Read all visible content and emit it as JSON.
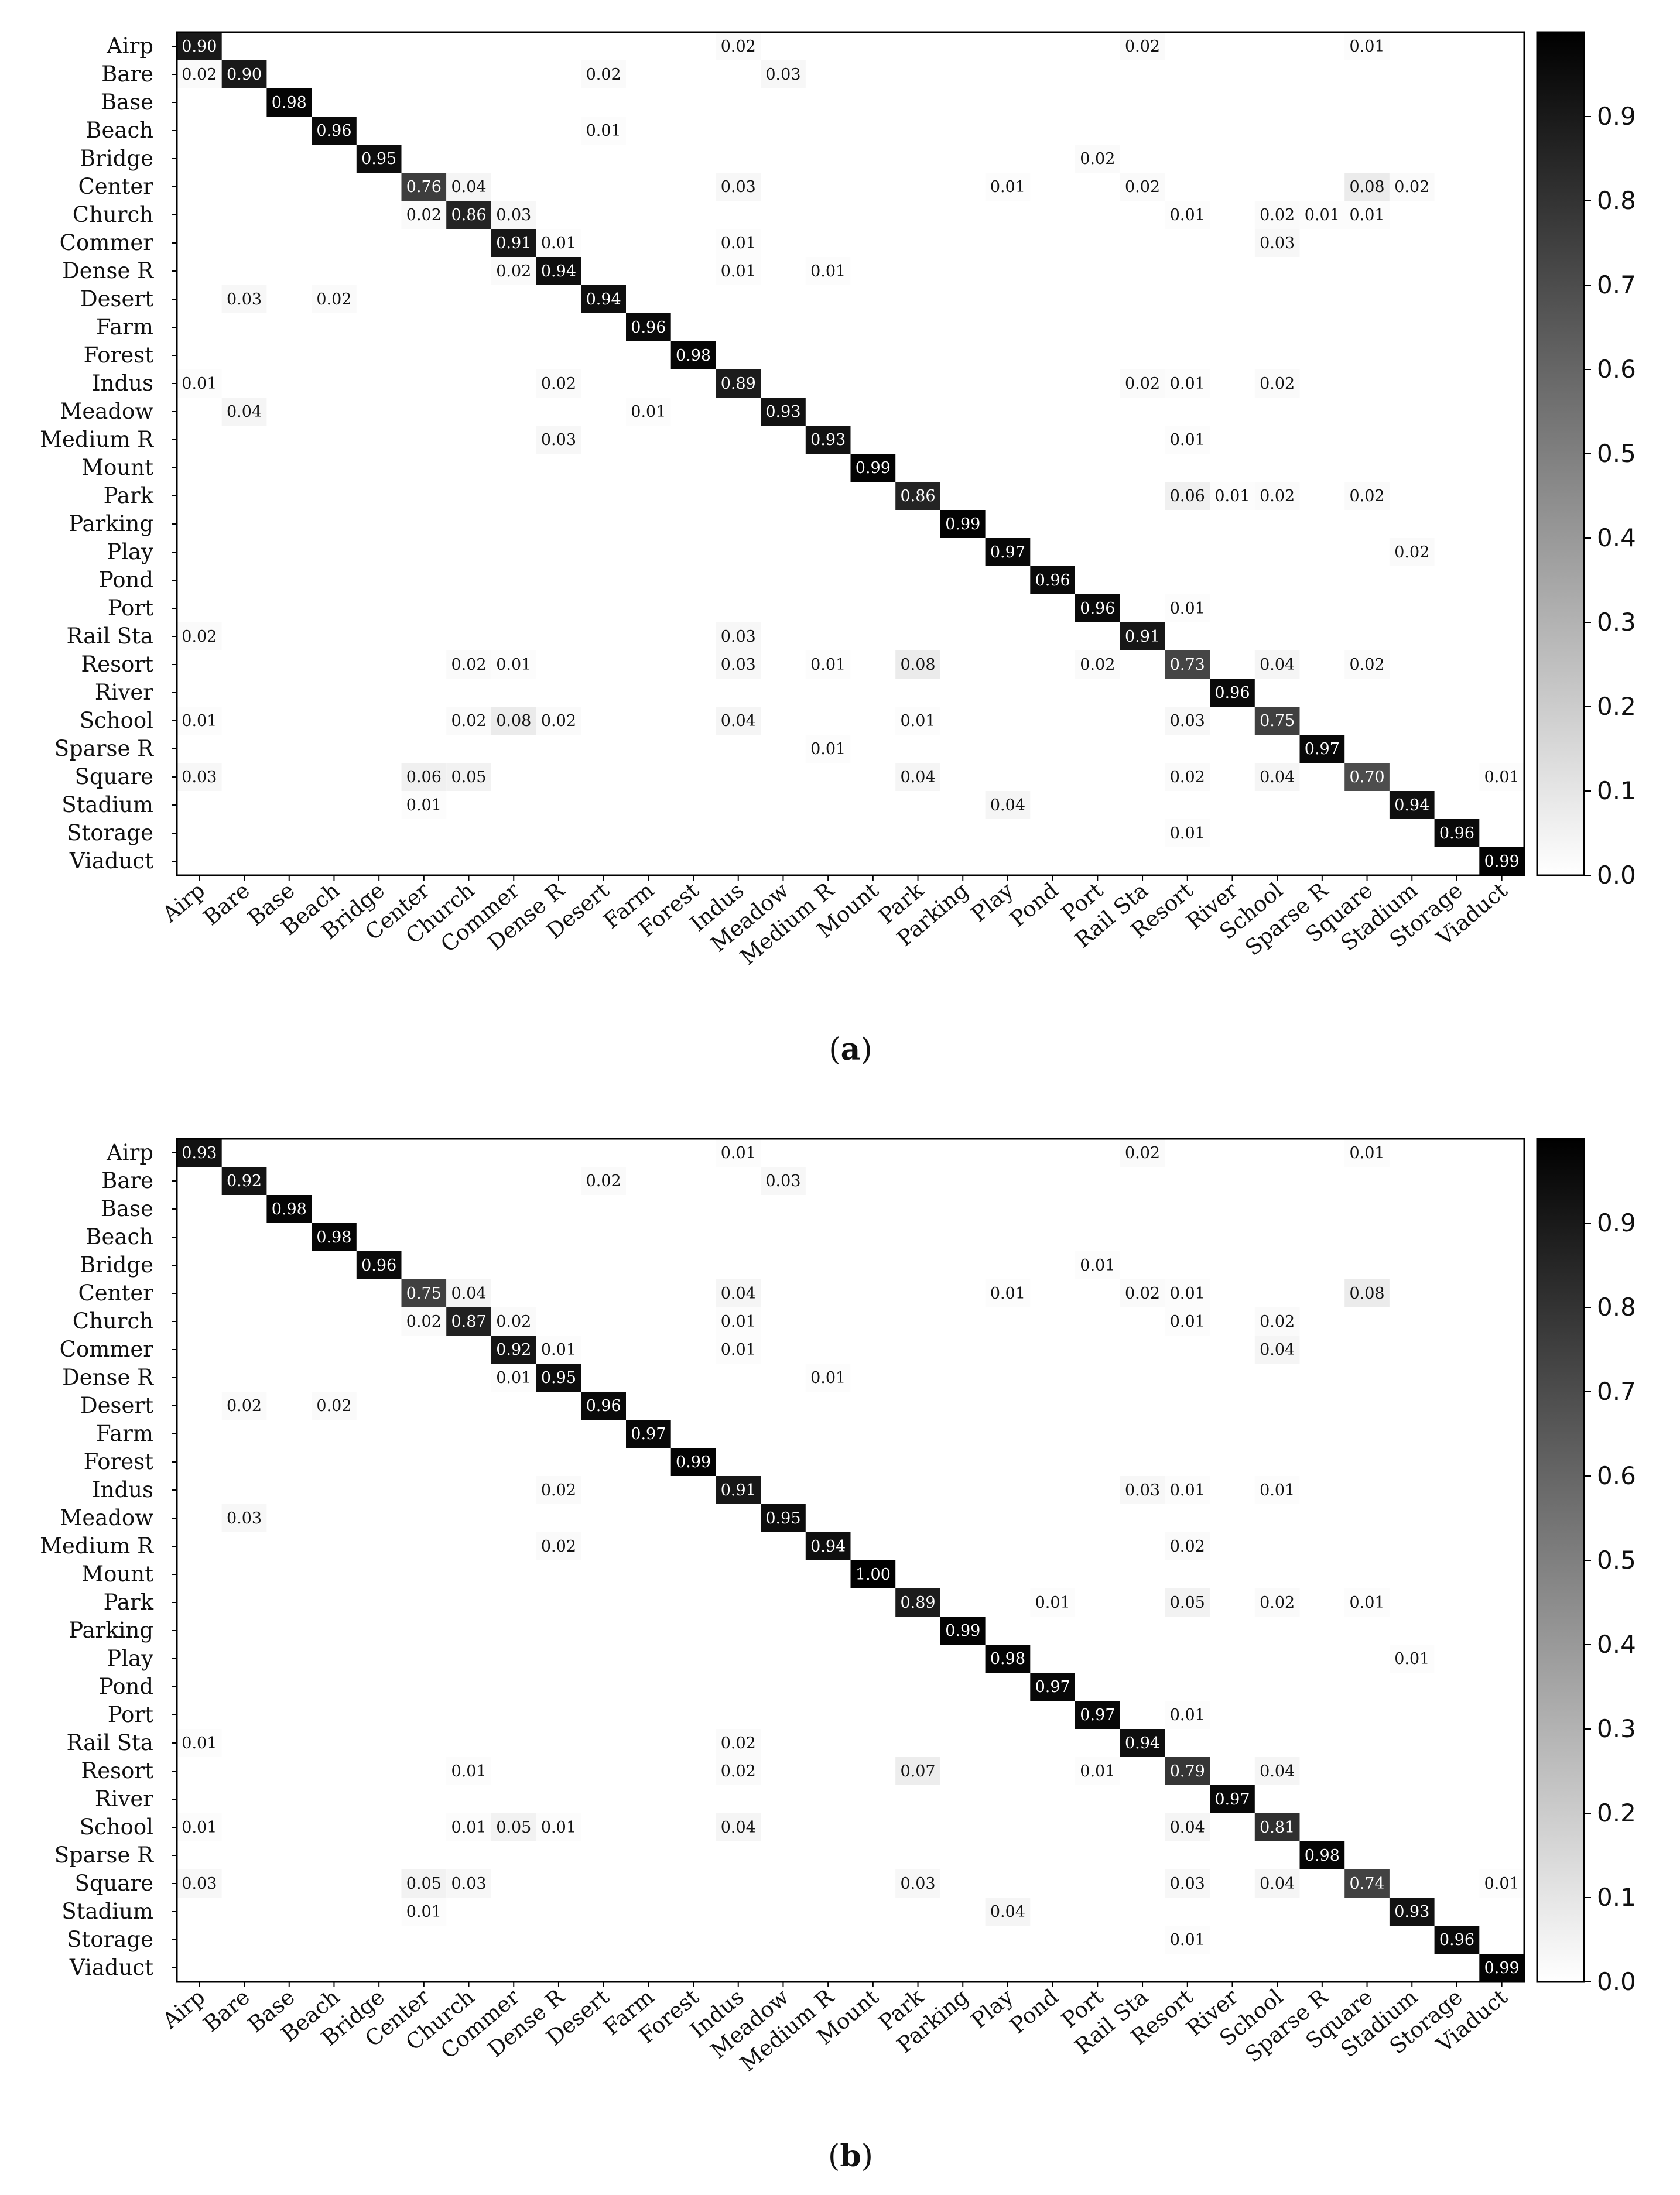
{
  "chart_data": [
    {
      "type": "heatmap",
      "caption": "(a)",
      "caption_parts": [
        "(",
        "a",
        ")"
      ],
      "labels": [
        "Airp",
        "Bare",
        "Base",
        "Beach",
        "Bridge",
        "Center",
        "Church",
        "Commer",
        "Dense R",
        "Desert",
        "Farm",
        "Forest",
        "Indus",
        "Meadow",
        "Medium R",
        "Mount",
        "Park",
        "Parking",
        "Play",
        "Pond",
        "Port",
        "Rail Sta",
        "Resort",
        "River",
        "School",
        "Sparse R",
        "Square",
        "Stadium",
        "Storage",
        "Viaduct"
      ],
      "colorbar": {
        "min": 0.0,
        "max": 1.0,
        "colormap": "Greys",
        "ticks": [
          "0.0",
          "0.1",
          "0.2",
          "0.3",
          "0.4",
          "0.5",
          "0.6",
          "0.7",
          "0.8",
          "0.9"
        ]
      },
      "cells": [
        {
          "r": 0,
          "c": 0,
          "v": "0.90"
        },
        {
          "r": 0,
          "c": 12,
          "v": "0.02"
        },
        {
          "r": 0,
          "c": 21,
          "v": "0.02"
        },
        {
          "r": 0,
          "c": 26,
          "v": "0.01"
        },
        {
          "r": 1,
          "c": 0,
          "v": "0.02"
        },
        {
          "r": 1,
          "c": 1,
          "v": "0.90"
        },
        {
          "r": 1,
          "c": 9,
          "v": "0.02"
        },
        {
          "r": 1,
          "c": 13,
          "v": "0.03"
        },
        {
          "r": 2,
          "c": 2,
          "v": "0.98"
        },
        {
          "r": 3,
          "c": 3,
          "v": "0.96"
        },
        {
          "r": 3,
          "c": 9,
          "v": "0.01"
        },
        {
          "r": 4,
          "c": 4,
          "v": "0.95"
        },
        {
          "r": 4,
          "c": 20,
          "v": "0.02"
        },
        {
          "r": 5,
          "c": 5,
          "v": "0.76"
        },
        {
          "r": 5,
          "c": 6,
          "v": "0.04"
        },
        {
          "r": 5,
          "c": 12,
          "v": "0.03"
        },
        {
          "r": 5,
          "c": 18,
          "v": "0.01"
        },
        {
          "r": 5,
          "c": 21,
          "v": "0.02"
        },
        {
          "r": 5,
          "c": 26,
          "v": "0.08"
        },
        {
          "r": 5,
          "c": 27,
          "v": "0.02"
        },
        {
          "r": 6,
          "c": 5,
          "v": "0.02"
        },
        {
          "r": 6,
          "c": 6,
          "v": "0.86"
        },
        {
          "r": 6,
          "c": 7,
          "v": "0.03"
        },
        {
          "r": 6,
          "c": 22,
          "v": "0.01"
        },
        {
          "r": 6,
          "c": 24,
          "v": "0.02"
        },
        {
          "r": 6,
          "c": 25,
          "v": "0.01"
        },
        {
          "r": 6,
          "c": 26,
          "v": "0.01"
        },
        {
          "r": 7,
          "c": 7,
          "v": "0.91"
        },
        {
          "r": 7,
          "c": 8,
          "v": "0.01"
        },
        {
          "r": 7,
          "c": 12,
          "v": "0.01"
        },
        {
          "r": 7,
          "c": 24,
          "v": "0.03"
        },
        {
          "r": 8,
          "c": 7,
          "v": "0.02"
        },
        {
          "r": 8,
          "c": 8,
          "v": "0.94"
        },
        {
          "r": 8,
          "c": 12,
          "v": "0.01"
        },
        {
          "r": 8,
          "c": 14,
          "v": "0.01"
        },
        {
          "r": 9,
          "c": 1,
          "v": "0.03"
        },
        {
          "r": 9,
          "c": 3,
          "v": "0.02"
        },
        {
          "r": 9,
          "c": 9,
          "v": "0.94"
        },
        {
          "r": 10,
          "c": 10,
          "v": "0.96"
        },
        {
          "r": 11,
          "c": 11,
          "v": "0.98"
        },
        {
          "r": 12,
          "c": 0,
          "v": "0.01"
        },
        {
          "r": 12,
          "c": 8,
          "v": "0.02"
        },
        {
          "r": 12,
          "c": 12,
          "v": "0.89"
        },
        {
          "r": 12,
          "c": 21,
          "v": "0.02"
        },
        {
          "r": 12,
          "c": 22,
          "v": "0.01"
        },
        {
          "r": 12,
          "c": 24,
          "v": "0.02"
        },
        {
          "r": 13,
          "c": 1,
          "v": "0.04"
        },
        {
          "r": 13,
          "c": 10,
          "v": "0.01"
        },
        {
          "r": 13,
          "c": 13,
          "v": "0.93"
        },
        {
          "r": 14,
          "c": 8,
          "v": "0.03"
        },
        {
          "r": 14,
          "c": 14,
          "v": "0.93"
        },
        {
          "r": 14,
          "c": 22,
          "v": "0.01"
        },
        {
          "r": 15,
          "c": 15,
          "v": "0.99"
        },
        {
          "r": 16,
          "c": 16,
          "v": "0.86"
        },
        {
          "r": 16,
          "c": 22,
          "v": "0.06"
        },
        {
          "r": 16,
          "c": 23,
          "v": "0.01"
        },
        {
          "r": 16,
          "c": 24,
          "v": "0.02"
        },
        {
          "r": 16,
          "c": 26,
          "v": "0.02"
        },
        {
          "r": 17,
          "c": 17,
          "v": "0.99"
        },
        {
          "r": 18,
          "c": 18,
          "v": "0.97"
        },
        {
          "r": 18,
          "c": 27,
          "v": "0.02"
        },
        {
          "r": 19,
          "c": 19,
          "v": "0.96"
        },
        {
          "r": 20,
          "c": 20,
          "v": "0.96"
        },
        {
          "r": 20,
          "c": 22,
          "v": "0.01"
        },
        {
          "r": 21,
          "c": 0,
          "v": "0.02"
        },
        {
          "r": 21,
          "c": 12,
          "v": "0.03"
        },
        {
          "r": 21,
          "c": 21,
          "v": "0.91"
        },
        {
          "r": 22,
          "c": 6,
          "v": "0.02"
        },
        {
          "r": 22,
          "c": 7,
          "v": "0.01"
        },
        {
          "r": 22,
          "c": 12,
          "v": "0.03"
        },
        {
          "r": 22,
          "c": 14,
          "v": "0.01"
        },
        {
          "r": 22,
          "c": 16,
          "v": "0.08"
        },
        {
          "r": 22,
          "c": 20,
          "v": "0.02"
        },
        {
          "r": 22,
          "c": 22,
          "v": "0.73"
        },
        {
          "r": 22,
          "c": 24,
          "v": "0.04"
        },
        {
          "r": 22,
          "c": 26,
          "v": "0.02"
        },
        {
          "r": 23,
          "c": 23,
          "v": "0.96"
        },
        {
          "r": 24,
          "c": 0,
          "v": "0.01"
        },
        {
          "r": 24,
          "c": 6,
          "v": "0.02"
        },
        {
          "r": 24,
          "c": 7,
          "v": "0.08"
        },
        {
          "r": 24,
          "c": 8,
          "v": "0.02"
        },
        {
          "r": 24,
          "c": 12,
          "v": "0.04"
        },
        {
          "r": 24,
          "c": 16,
          "v": "0.01"
        },
        {
          "r": 24,
          "c": 22,
          "v": "0.03"
        },
        {
          "r": 24,
          "c": 24,
          "v": "0.75"
        },
        {
          "r": 25,
          "c": 14,
          "v": "0.01"
        },
        {
          "r": 25,
          "c": 25,
          "v": "0.97"
        },
        {
          "r": 26,
          "c": 0,
          "v": "0.03"
        },
        {
          "r": 26,
          "c": 5,
          "v": "0.06"
        },
        {
          "r": 26,
          "c": 6,
          "v": "0.05"
        },
        {
          "r": 26,
          "c": 16,
          "v": "0.04"
        },
        {
          "r": 26,
          "c": 22,
          "v": "0.02"
        },
        {
          "r": 26,
          "c": 24,
          "v": "0.04"
        },
        {
          "r": 26,
          "c": 26,
          "v": "0.70"
        },
        {
          "r": 26,
          "c": 29,
          "v": "0.01"
        },
        {
          "r": 27,
          "c": 5,
          "v": "0.01"
        },
        {
          "r": 27,
          "c": 18,
          "v": "0.04"
        },
        {
          "r": 27,
          "c": 27,
          "v": "0.94"
        },
        {
          "r": 28,
          "c": 22,
          "v": "0.01"
        },
        {
          "r": 28,
          "c": 28,
          "v": "0.96"
        },
        {
          "r": 29,
          "c": 29,
          "v": "0.99"
        }
      ]
    },
    {
      "type": "heatmap",
      "caption": "(b)",
      "caption_parts": [
        "(",
        "b",
        ")"
      ],
      "labels": [
        "Airp",
        "Bare",
        "Base",
        "Beach",
        "Bridge",
        "Center",
        "Church",
        "Commer",
        "Dense R",
        "Desert",
        "Farm",
        "Forest",
        "Indus",
        "Meadow",
        "Medium R",
        "Mount",
        "Park",
        "Parking",
        "Play",
        "Pond",
        "Port",
        "Rail Sta",
        "Resort",
        "River",
        "School",
        "Sparse R",
        "Square",
        "Stadium",
        "Storage",
        "Viaduct"
      ],
      "colorbar": {
        "min": 0.0,
        "max": 1.0,
        "colormap": "Greys",
        "ticks": [
          "0.0",
          "0.1",
          "0.2",
          "0.3",
          "0.4",
          "0.5",
          "0.6",
          "0.7",
          "0.8",
          "0.9"
        ]
      },
      "cells": [
        {
          "r": 0,
          "c": 0,
          "v": "0.93"
        },
        {
          "r": 0,
          "c": 12,
          "v": "0.01"
        },
        {
          "r": 0,
          "c": 21,
          "v": "0.02"
        },
        {
          "r": 0,
          "c": 26,
          "v": "0.01"
        },
        {
          "r": 1,
          "c": 1,
          "v": "0.92"
        },
        {
          "r": 1,
          "c": 9,
          "v": "0.02"
        },
        {
          "r": 1,
          "c": 13,
          "v": "0.03"
        },
        {
          "r": 2,
          "c": 2,
          "v": "0.98"
        },
        {
          "r": 3,
          "c": 3,
          "v": "0.98"
        },
        {
          "r": 4,
          "c": 4,
          "v": "0.96"
        },
        {
          "r": 4,
          "c": 20,
          "v": "0.01"
        },
        {
          "r": 5,
          "c": 5,
          "v": "0.75"
        },
        {
          "r": 5,
          "c": 6,
          "v": "0.04"
        },
        {
          "r": 5,
          "c": 12,
          "v": "0.04"
        },
        {
          "r": 5,
          "c": 18,
          "v": "0.01"
        },
        {
          "r": 5,
          "c": 21,
          "v": "0.02"
        },
        {
          "r": 5,
          "c": 22,
          "v": "0.01"
        },
        {
          "r": 5,
          "c": 26,
          "v": "0.08"
        },
        {
          "r": 6,
          "c": 5,
          "v": "0.02"
        },
        {
          "r": 6,
          "c": 6,
          "v": "0.87"
        },
        {
          "r": 6,
          "c": 7,
          "v": "0.02"
        },
        {
          "r": 6,
          "c": 12,
          "v": "0.01"
        },
        {
          "r": 6,
          "c": 22,
          "v": "0.01"
        },
        {
          "r": 6,
          "c": 24,
          "v": "0.02"
        },
        {
          "r": 7,
          "c": 7,
          "v": "0.92"
        },
        {
          "r": 7,
          "c": 8,
          "v": "0.01"
        },
        {
          "r": 7,
          "c": 12,
          "v": "0.01"
        },
        {
          "r": 7,
          "c": 24,
          "v": "0.04"
        },
        {
          "r": 8,
          "c": 7,
          "v": "0.01"
        },
        {
          "r": 8,
          "c": 8,
          "v": "0.95"
        },
        {
          "r": 8,
          "c": 14,
          "v": "0.01"
        },
        {
          "r": 9,
          "c": 1,
          "v": "0.02"
        },
        {
          "r": 9,
          "c": 3,
          "v": "0.02"
        },
        {
          "r": 9,
          "c": 9,
          "v": "0.96"
        },
        {
          "r": 10,
          "c": 10,
          "v": "0.97"
        },
        {
          "r": 11,
          "c": 11,
          "v": "0.99"
        },
        {
          "r": 12,
          "c": 8,
          "v": "0.02"
        },
        {
          "r": 12,
          "c": 12,
          "v": "0.91"
        },
        {
          "r": 12,
          "c": 21,
          "v": "0.03"
        },
        {
          "r": 12,
          "c": 22,
          "v": "0.01"
        },
        {
          "r": 12,
          "c": 24,
          "v": "0.01"
        },
        {
          "r": 13,
          "c": 1,
          "v": "0.03"
        },
        {
          "r": 13,
          "c": 13,
          "v": "0.95"
        },
        {
          "r": 14,
          "c": 8,
          "v": "0.02"
        },
        {
          "r": 14,
          "c": 14,
          "v": "0.94"
        },
        {
          "r": 14,
          "c": 22,
          "v": "0.02"
        },
        {
          "r": 15,
          "c": 15,
          "v": "1.00"
        },
        {
          "r": 16,
          "c": 16,
          "v": "0.89"
        },
        {
          "r": 16,
          "c": 19,
          "v": "0.01"
        },
        {
          "r": 16,
          "c": 22,
          "v": "0.05"
        },
        {
          "r": 16,
          "c": 24,
          "v": "0.02"
        },
        {
          "r": 16,
          "c": 26,
          "v": "0.01"
        },
        {
          "r": 17,
          "c": 17,
          "v": "0.99"
        },
        {
          "r": 18,
          "c": 18,
          "v": "0.98"
        },
        {
          "r": 18,
          "c": 27,
          "v": "0.01"
        },
        {
          "r": 19,
          "c": 19,
          "v": "0.97"
        },
        {
          "r": 20,
          "c": 20,
          "v": "0.97"
        },
        {
          "r": 20,
          "c": 22,
          "v": "0.01"
        },
        {
          "r": 21,
          "c": 0,
          "v": "0.01"
        },
        {
          "r": 21,
          "c": 12,
          "v": "0.02"
        },
        {
          "r": 21,
          "c": 21,
          "v": "0.94"
        },
        {
          "r": 22,
          "c": 6,
          "v": "0.01"
        },
        {
          "r": 22,
          "c": 12,
          "v": "0.02"
        },
        {
          "r": 22,
          "c": 16,
          "v": "0.07"
        },
        {
          "r": 22,
          "c": 20,
          "v": "0.01"
        },
        {
          "r": 22,
          "c": 22,
          "v": "0.79"
        },
        {
          "r": 22,
          "c": 24,
          "v": "0.04"
        },
        {
          "r": 23,
          "c": 23,
          "v": "0.97"
        },
        {
          "r": 24,
          "c": 0,
          "v": "0.01"
        },
        {
          "r": 24,
          "c": 6,
          "v": "0.01"
        },
        {
          "r": 24,
          "c": 7,
          "v": "0.05"
        },
        {
          "r": 24,
          "c": 8,
          "v": "0.01"
        },
        {
          "r": 24,
          "c": 12,
          "v": "0.04"
        },
        {
          "r": 24,
          "c": 22,
          "v": "0.04"
        },
        {
          "r": 24,
          "c": 24,
          "v": "0.81"
        },
        {
          "r": 25,
          "c": 25,
          "v": "0.98"
        },
        {
          "r": 26,
          "c": 0,
          "v": "0.03"
        },
        {
          "r": 26,
          "c": 5,
          "v": "0.05"
        },
        {
          "r": 26,
          "c": 6,
          "v": "0.03"
        },
        {
          "r": 26,
          "c": 16,
          "v": "0.03"
        },
        {
          "r": 26,
          "c": 22,
          "v": "0.03"
        },
        {
          "r": 26,
          "c": 24,
          "v": "0.04"
        },
        {
          "r": 26,
          "c": 26,
          "v": "0.74"
        },
        {
          "r": 26,
          "c": 29,
          "v": "0.01"
        },
        {
          "r": 27,
          "c": 5,
          "v": "0.01"
        },
        {
          "r": 27,
          "c": 18,
          "v": "0.04"
        },
        {
          "r": 27,
          "c": 27,
          "v": "0.93"
        },
        {
          "r": 28,
          "c": 22,
          "v": "0.01"
        },
        {
          "r": 28,
          "c": 28,
          "v": "0.96"
        },
        {
          "r": 29,
          "c": 29,
          "v": "0.99"
        }
      ]
    }
  ]
}
